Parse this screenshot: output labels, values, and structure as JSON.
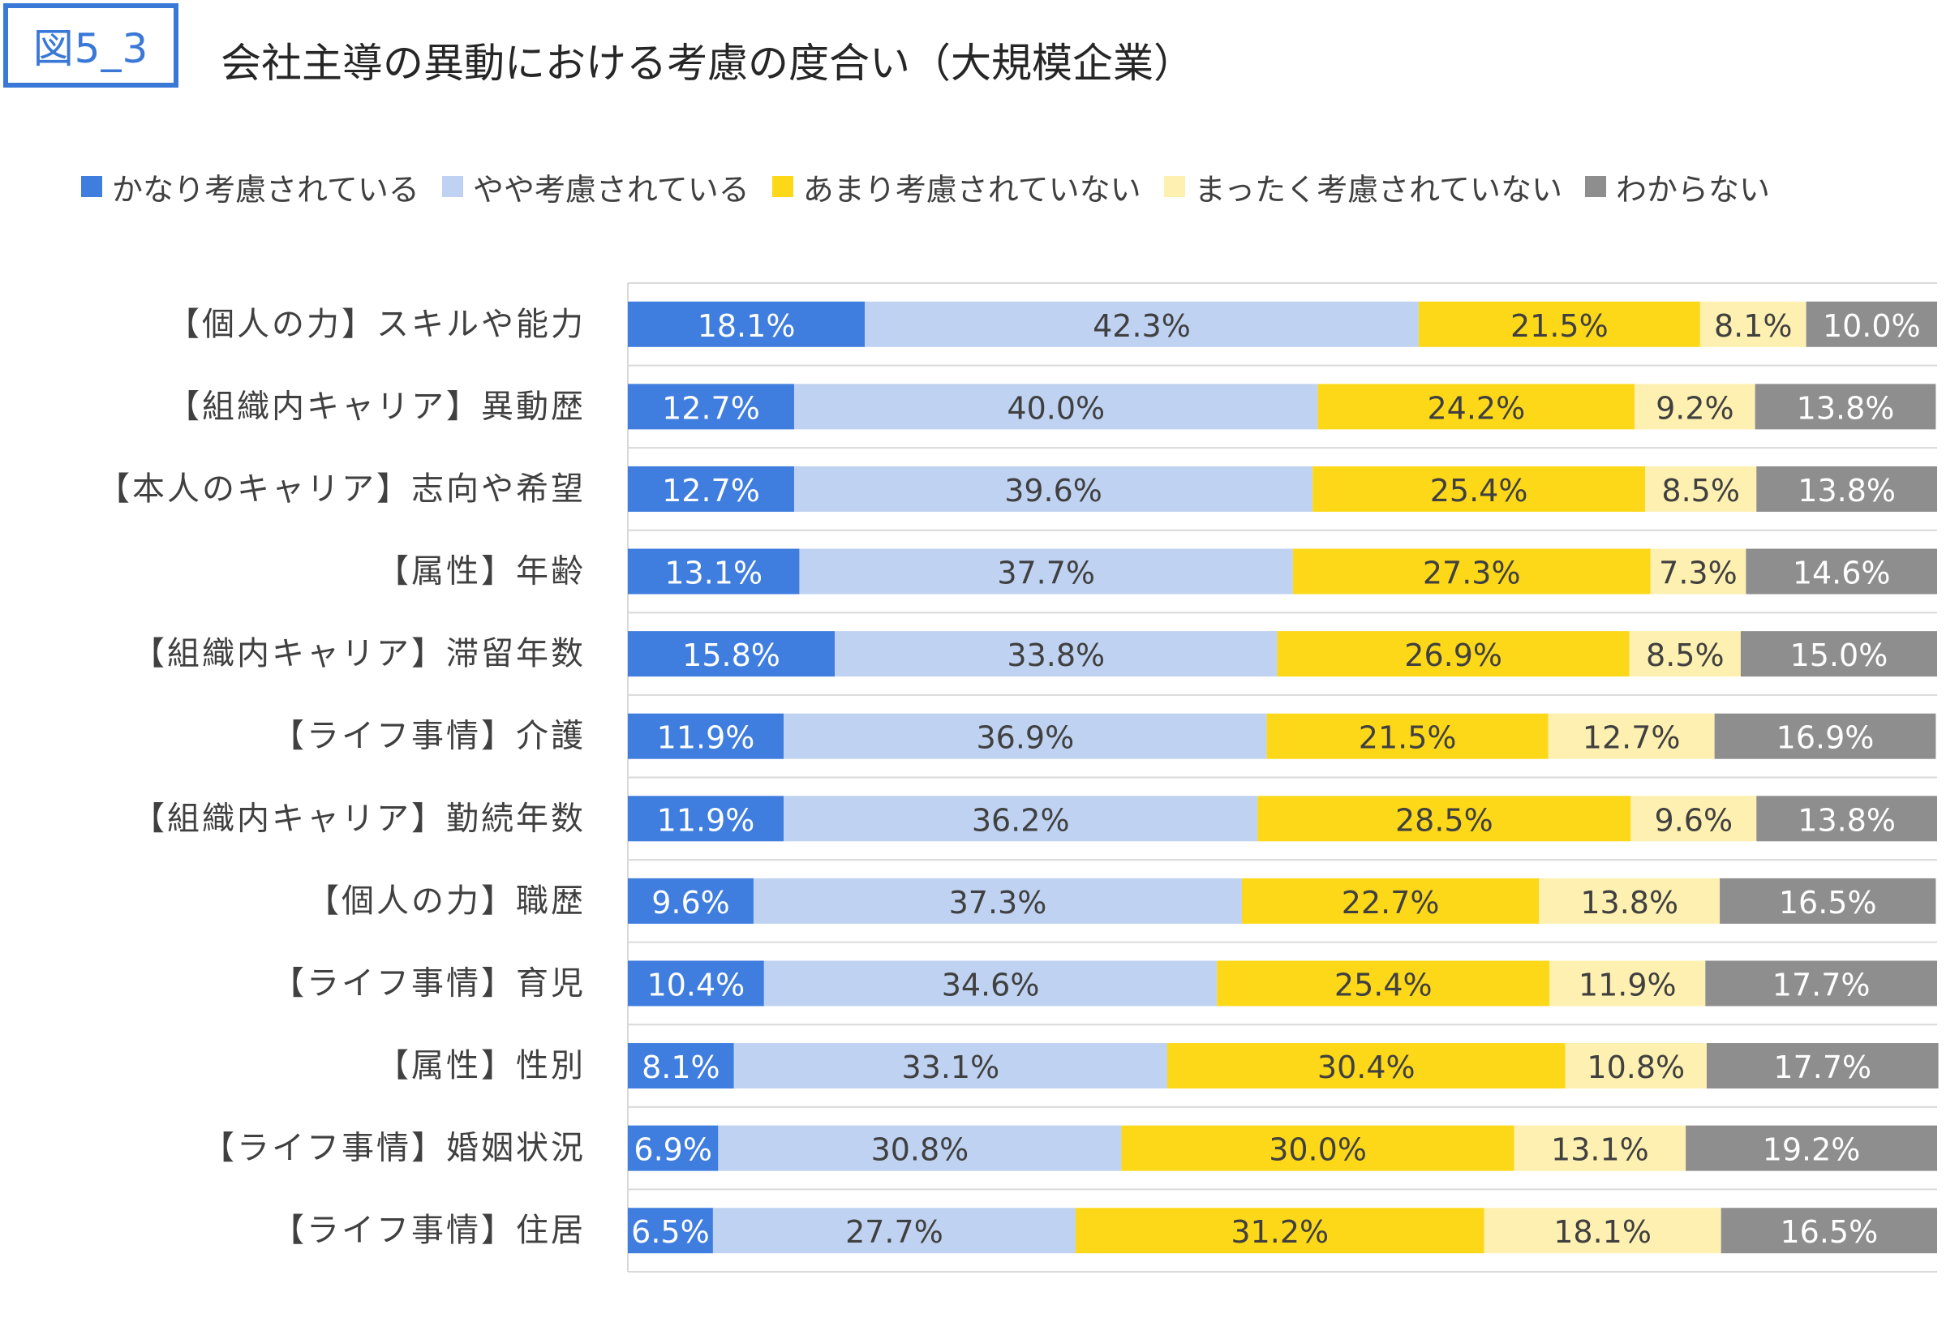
{
  "figure_label": "図5_3",
  "title": "会社主導の異動における考慮の度合い（大規模企業）",
  "chart_data": {
    "type": "bar",
    "orientation": "horizontal",
    "stacked": true,
    "percent_stacked": true,
    "legend_position": "top",
    "grid": true,
    "xlim": [
      0,
      100
    ],
    "categories": [
      "【個人の力】スキルや能力",
      "【組織内キャリア】異動歴",
      "【本人のキャリア】志向や希望",
      "【属性】年齢",
      "【組織内キャリア】滞留年数",
      "【ライフ事情】介護",
      "【組織内キャリア】勤続年数",
      "【個人の力】職歴",
      "【ライフ事情】育児",
      "【属性】性別",
      "【ライフ事情】婚姻状況",
      "【ライフ事情】住居"
    ],
    "series": [
      {
        "name": "かなり考慮されている",
        "color": "#3f7ddf",
        "label_color": "#ffffff",
        "values": [
          18.1,
          12.7,
          12.7,
          13.1,
          15.8,
          11.9,
          11.9,
          9.6,
          10.4,
          8.1,
          6.9,
          6.5
        ]
      },
      {
        "name": "やや考慮されている",
        "color": "#bfd2f1",
        "label_color": "#404040",
        "values": [
          42.3,
          40.0,
          39.6,
          37.7,
          33.8,
          36.9,
          36.2,
          37.3,
          34.6,
          33.1,
          30.8,
          27.7
        ]
      },
      {
        "name": "あまり考慮されていない",
        "color": "#fdd819",
        "label_color": "#404040",
        "values": [
          21.5,
          24.2,
          25.4,
          27.3,
          26.9,
          21.5,
          28.5,
          22.7,
          25.4,
          30.4,
          30.0,
          31.2
        ]
      },
      {
        "name": "まったく考慮されていない",
        "color": "#fef0b0",
        "label_color": "#404040",
        "values": [
          8.1,
          9.2,
          8.5,
          7.3,
          8.5,
          12.7,
          9.6,
          13.8,
          11.9,
          10.8,
          13.1,
          18.1
        ]
      },
      {
        "name": "わからない",
        "color": "#8e8e8e",
        "label_color": "#ffffff",
        "values": [
          10.0,
          13.8,
          13.8,
          14.6,
          15.0,
          16.9,
          13.8,
          16.5,
          17.7,
          17.7,
          19.2,
          16.5
        ]
      }
    ],
    "value_labels": [
      [
        "18.1%",
        "42.3%",
        "21.5%",
        "8.1%",
        "10.0%"
      ],
      [
        "12.7%",
        "40.0%",
        "24.2%",
        "9.2%",
        "13.8%"
      ],
      [
        "12.7%",
        "39.6%",
        "25.4%",
        "8.5%",
        "13.8%"
      ],
      [
        "13.1%",
        "37.7%",
        "27.3%",
        "7.3%",
        "14.6%"
      ],
      [
        "15.8%",
        "33.8%",
        "26.9%",
        "8.5%",
        "15.0%"
      ],
      [
        "11.9%",
        "36.9%",
        "21.5%",
        "12.7%",
        "16.9%"
      ],
      [
        "11.9%",
        "36.2%",
        "28.5%",
        "9.6%",
        "13.8%"
      ],
      [
        "9.6%",
        "37.3%",
        "22.7%",
        "13.8%",
        "16.5%"
      ],
      [
        "10.4%",
        "34.6%",
        "25.4%",
        "11.9%",
        "17.7%"
      ],
      [
        "8.1%",
        "33.1%",
        "30.4%",
        "10.8%",
        "17.7%"
      ],
      [
        "6.9%",
        "30.8%",
        "30.0%",
        "13.1%",
        "19.2%"
      ],
      [
        "6.5%",
        "27.7%",
        "31.2%",
        "18.1%",
        "16.5%"
      ]
    ]
  }
}
